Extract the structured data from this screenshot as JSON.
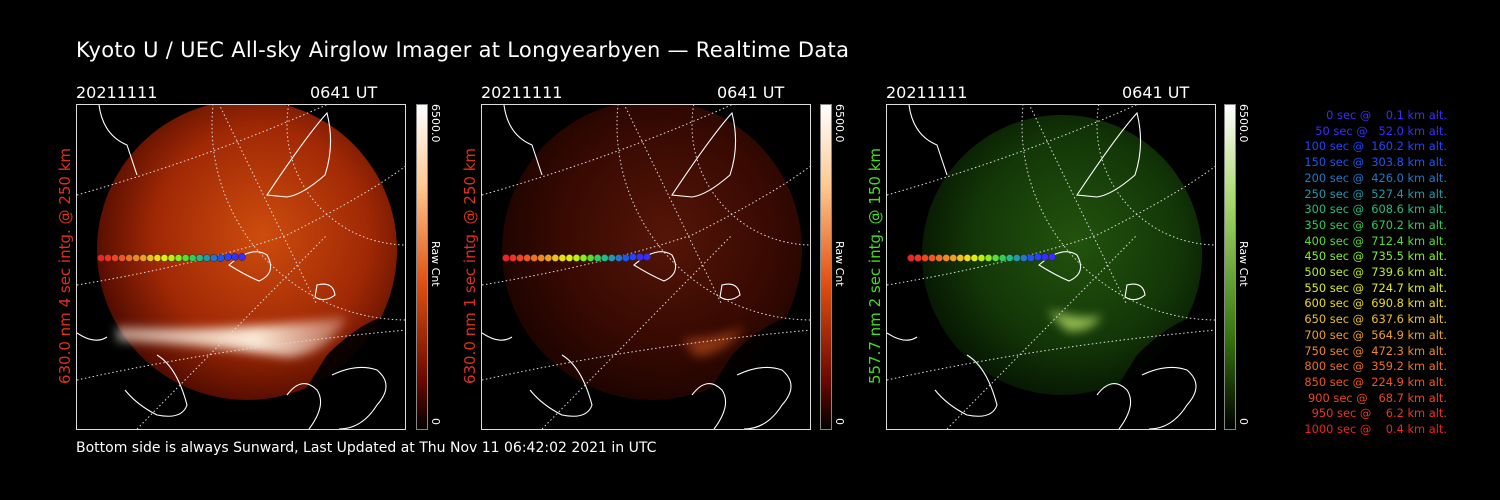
{
  "title": "Kyoto U / UEC All-sky Airglow Imager at Longyearbyen — Realtime Data",
  "footer": "Bottom side is always Sunward, Last Updated at Thu Nov 11 06:42:02 2021 in UTC",
  "panels": [
    {
      "date": "20211111",
      "time": "0641 UT",
      "ylabel": "630.0 nm 4 sec intg. @ 250 km",
      "label_color": "#e0301c",
      "cbar_max": "6500.0",
      "cbar_min": "0",
      "cbar_label": "Raw Cnt",
      "tint": "red-bright"
    },
    {
      "date": "20211111",
      "time": "0641 UT",
      "ylabel": "630.0 nm 1 sec intg. @ 250 km",
      "label_color": "#e0301c",
      "cbar_max": "6500.0",
      "cbar_min": "0",
      "cbar_label": "Raw Cnt",
      "tint": "red-dim"
    },
    {
      "date": "20211111",
      "time": "0641 UT",
      "ylabel": "557.7 nm 2 sec intg. @ 150 km",
      "label_color": "#44dd22",
      "cbar_max": "6500.0",
      "cbar_min": "0",
      "cbar_label": "Raw Cnt",
      "tint": "green"
    }
  ],
  "legend": [
    {
      "text": "   0 sec @    0.1 km alt.",
      "color": "#3a2cff"
    },
    {
      "text": "  50 sec @   52.0 km alt.",
      "color": "#3a2cff"
    },
    {
      "text": " 100 sec @  160.2 km alt.",
      "color": "#2244ff"
    },
    {
      "text": " 150 sec @  303.8 km alt.",
      "color": "#1f55ee"
    },
    {
      "text": " 200 sec @  426.0 km alt.",
      "color": "#2277cc"
    },
    {
      "text": " 250 sec @  527.4 km alt.",
      "color": "#2299aa"
    },
    {
      "text": " 300 sec @  608.6 km alt.",
      "color": "#22bb88"
    },
    {
      "text": " 350 sec @  670.2 km alt.",
      "color": "#33cc55"
    },
    {
      "text": " 400 sec @  712.4 km alt.",
      "color": "#55dd33"
    },
    {
      "text": " 450 sec @  735.5 km alt.",
      "color": "#88ee22"
    },
    {
      "text": " 500 sec @  739.6 km alt.",
      "color": "#bbee11"
    },
    {
      "text": " 550 sec @  724.7 km alt.",
      "color": "#ddee11"
    },
    {
      "text": " 600 sec @  690.8 km alt.",
      "color": "#eedd11"
    },
    {
      "text": " 650 sec @  637.6 km alt.",
      "color": "#eec022"
    },
    {
      "text": " 700 sec @  564.9 km alt.",
      "color": "#eea022"
    },
    {
      "text": " 750 sec @  472.3 km alt.",
      "color": "#ee8822"
    },
    {
      "text": " 800 sec @  359.2 km alt.",
      "color": "#ee7022"
    },
    {
      "text": " 850 sec @  224.9 km alt.",
      "color": "#ee5522"
    },
    {
      "text": " 900 sec @   68.7 km alt.",
      "color": "#ee4422"
    },
    {
      "text": " 950 sec @    6.2 km alt.",
      "color": "#ee3322"
    },
    {
      "text": "1000 sec @    0.4 km alt.",
      "color": "#ee2222"
    }
  ]
}
